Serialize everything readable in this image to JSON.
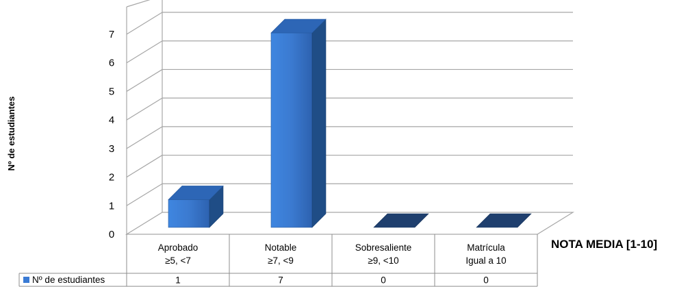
{
  "chart_data": {
    "type": "bar",
    "categories": [
      [
        "Aprobado",
        "≥5, <7"
      ],
      [
        "Notable",
        "≥7, <9"
      ],
      [
        "Sobresaliente",
        "≥9, <10"
      ],
      [
        "Matrícula",
        "Igual a 10"
      ]
    ],
    "series": [
      {
        "name": "Nº de estudiantes",
        "values": [
          1,
          7,
          0,
          0
        ],
        "color": "#3a7bd5"
      }
    ],
    "yticks": [
      "0",
      "1",
      "2",
      "3",
      "4",
      "5",
      "6",
      "7"
    ],
    "ylabel": "Nº de estudiantes",
    "xlabel": "NOTA MEDIA [1-10]",
    "ylim": [
      0,
      7
    ],
    "grid": true,
    "three_d": true,
    "legend": "data-table"
  }
}
